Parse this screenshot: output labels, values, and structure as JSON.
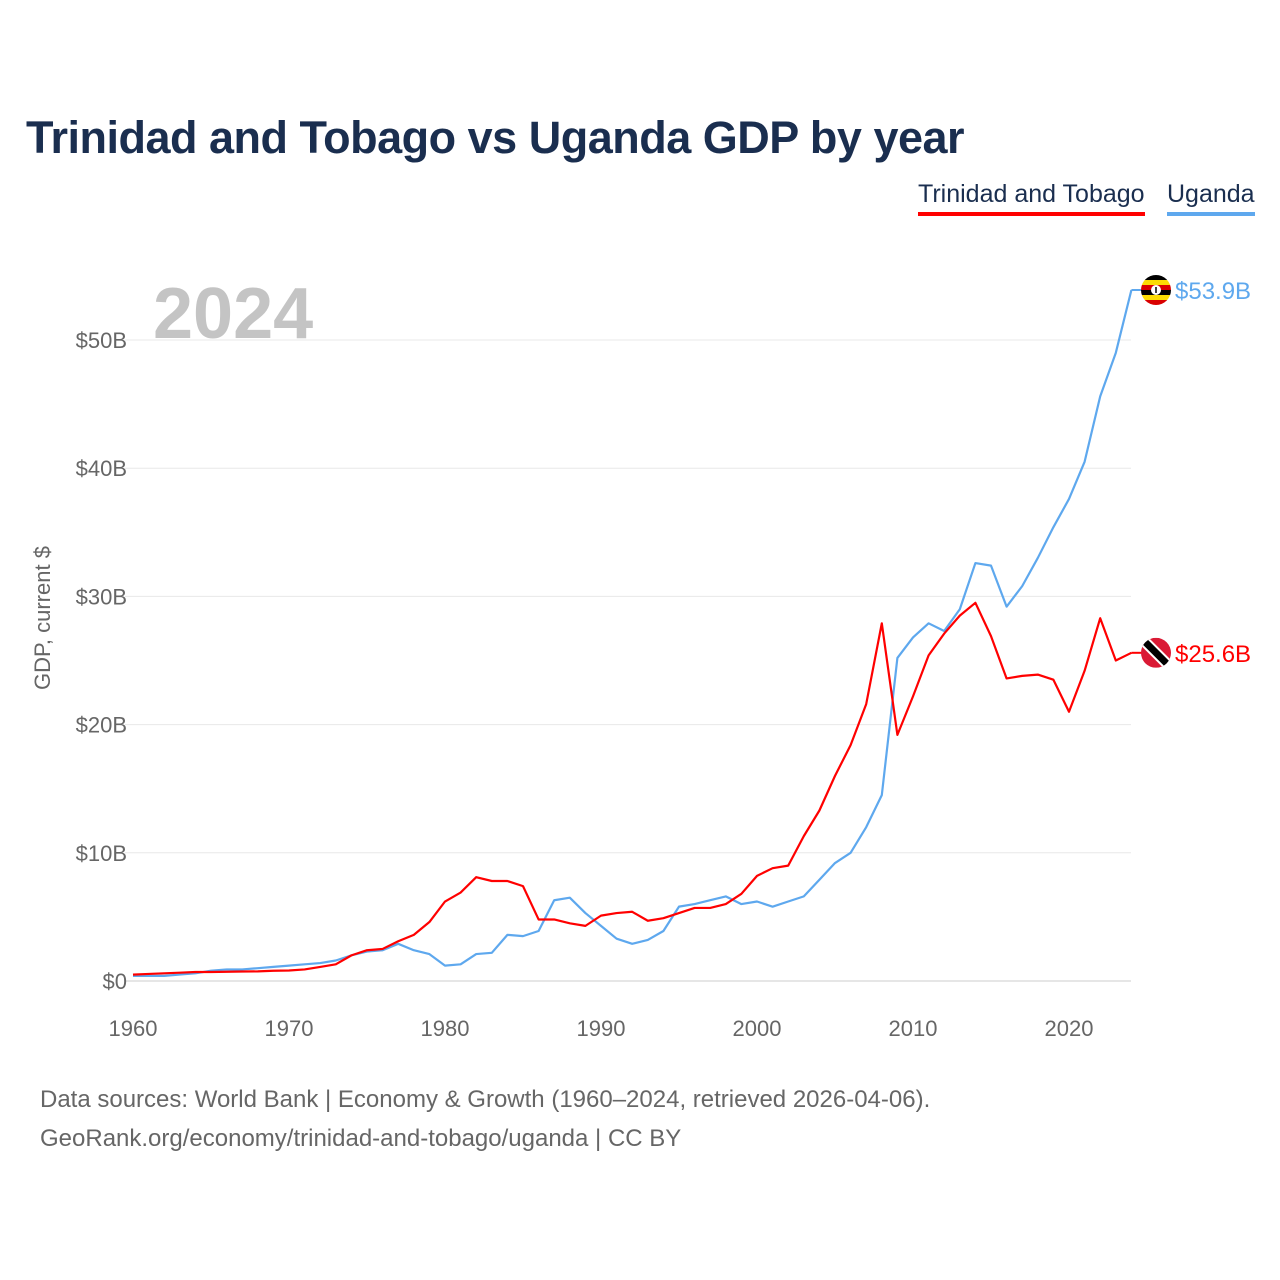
{
  "chart_data": {
    "type": "line",
    "title": "Trinidad and Tobago vs Uganda GDP by year",
    "ylabel": "GDP, current $",
    "xlabel": "",
    "year_label": "2024",
    "xlim": [
      1960,
      2024
    ],
    "ylim": [
      0,
      55
    ],
    "x_ticks": [
      1960,
      1970,
      1980,
      1990,
      2000,
      2010,
      2020
    ],
    "y_ticks": [
      0,
      10,
      20,
      30,
      40,
      50
    ],
    "y_tick_labels": [
      "$0",
      "$10B",
      "$20B",
      "$30B",
      "$40B",
      "$50B"
    ],
    "grid": true,
    "legend_position": "top-right",
    "x": [
      1960,
      1961,
      1962,
      1963,
      1964,
      1965,
      1966,
      1967,
      1968,
      1969,
      1970,
      1971,
      1972,
      1973,
      1974,
      1975,
      1976,
      1977,
      1978,
      1979,
      1980,
      1981,
      1982,
      1983,
      1984,
      1985,
      1986,
      1987,
      1988,
      1989,
      1990,
      1991,
      1992,
      1993,
      1994,
      1995,
      1996,
      1997,
      1998,
      1999,
      2000,
      2001,
      2002,
      2003,
      2004,
      2005,
      2006,
      2007,
      2008,
      2009,
      2010,
      2011,
      2012,
      2013,
      2014,
      2015,
      2016,
      2017,
      2018,
      2019,
      2020,
      2021,
      2022,
      2023,
      2024
    ],
    "series": [
      {
        "name": "Trinidad and Tobago",
        "color": "#ff0000",
        "end_label": "$25.6B",
        "flag": "trinidad-and-tobago",
        "values": [
          0.5,
          0.55,
          0.6,
          0.65,
          0.7,
          0.7,
          0.72,
          0.74,
          0.75,
          0.8,
          0.82,
          0.9,
          1.1,
          1.3,
          2.0,
          2.4,
          2.5,
          3.1,
          3.6,
          4.6,
          6.2,
          6.9,
          8.1,
          7.8,
          7.8,
          7.4,
          4.8,
          4.8,
          4.5,
          4.3,
          5.1,
          5.3,
          5.4,
          4.7,
          4.9,
          5.3,
          5.7,
          5.7,
          6.0,
          6.8,
          8.2,
          8.8,
          9.0,
          11.3,
          13.3,
          16.0,
          18.4,
          21.6,
          27.9,
          19.2,
          22.2,
          25.4,
          27.1,
          28.5,
          29.5,
          26.9,
          23.6,
          23.8,
          23.9,
          23.5,
          21.0,
          24.2,
          28.3,
          25.0,
          25.6
        ]
      },
      {
        "name": "Uganda",
        "color": "#5ea8ee",
        "end_label": "$53.9B",
        "flag": "uganda",
        "values": [
          0.4,
          0.4,
          0.4,
          0.5,
          0.6,
          0.8,
          0.9,
          0.9,
          1.0,
          1.1,
          1.2,
          1.3,
          1.4,
          1.6,
          2.0,
          2.3,
          2.4,
          2.9,
          2.4,
          2.1,
          1.2,
          1.3,
          2.1,
          2.2,
          3.6,
          3.5,
          3.9,
          6.3,
          6.5,
          5.3,
          4.3,
          3.3,
          2.9,
          3.2,
          3.9,
          5.8,
          6.0,
          6.3,
          6.6,
          6.0,
          6.2,
          5.8,
          6.2,
          6.6,
          7.9,
          9.2,
          10.0,
          12.0,
          14.5,
          25.2,
          26.8,
          27.9,
          27.3,
          29.0,
          32.6,
          32.4,
          29.2,
          30.8,
          33.0,
          35.4,
          37.6,
          40.5,
          45.6,
          49.0,
          53.9
        ]
      }
    ]
  },
  "source": {
    "line1": "Data sources: World Bank | Economy & Growth (1960–2024, retrieved 2026-04-06).",
    "line2": "GeoRank.org/economy/trinidad-and-tobago/uganda | CC BY"
  }
}
